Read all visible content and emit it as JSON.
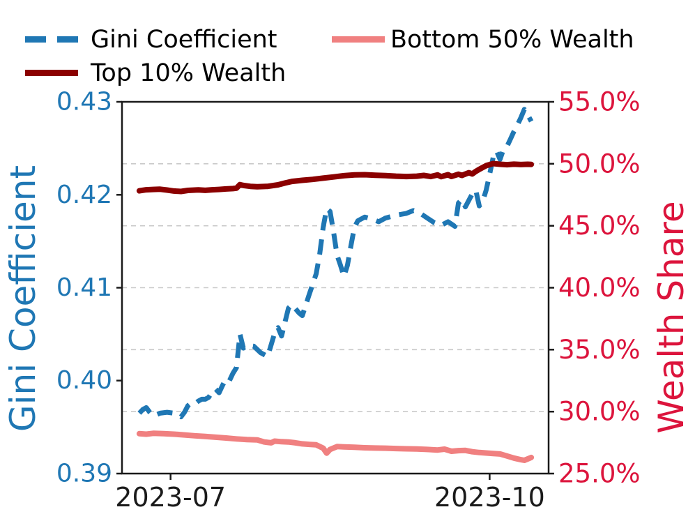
{
  "figure": {
    "background": "#ffffff",
    "legend": {
      "items": [
        {
          "label": "Gini Coefficient",
          "color": "#1f77b4",
          "style": "dashed"
        },
        {
          "label": "Top 10% Wealth",
          "color": "#8b0000",
          "style": "solid"
        },
        {
          "label": "Bottom 50% Wealth",
          "color": "#f08080",
          "style": "solid"
        }
      ]
    },
    "axes": {
      "left": {
        "label": "Gini Coefficient",
        "color": "#1f77b4",
        "lim": [
          0.39,
          0.43
        ],
        "ticks": [
          {
            "label": "0.43",
            "value": 0.43
          },
          {
            "label": "0.42",
            "value": 0.42
          },
          {
            "label": "0.41",
            "value": 0.41
          },
          {
            "label": "0.40",
            "value": 0.4
          },
          {
            "label": "0.39",
            "value": 0.39
          }
        ]
      },
      "right": {
        "label": "Wealth Share",
        "color": "#dc143c",
        "lim": [
          25.0,
          55.0
        ],
        "ticks": [
          {
            "label": "55.0%",
            "value": 55.0
          },
          {
            "label": "50.0%",
            "value": 50.0
          },
          {
            "label": "45.0%",
            "value": 45.0
          },
          {
            "label": "40.0%",
            "value": 40.0
          },
          {
            "label": "35.0%",
            "value": 35.0
          },
          {
            "label": "30.0%",
            "value": 30.0
          },
          {
            "label": "25.0%",
            "value": 25.0
          }
        ]
      },
      "x": {
        "lim": [
          "2023-06-17",
          "2023-10-18"
        ],
        "tick_color": "#1a1a1a",
        "ticks": [
          {
            "label": "2023-07",
            "value": "2023-07-01"
          },
          {
            "label": "2023-10",
            "value": "2023-10-01"
          }
        ]
      }
    },
    "spine_color": "#1a1a1a"
  },
  "chart_data": {
    "type": "line",
    "x_type": "date",
    "title": "",
    "grid": {
      "axis": "right",
      "values": [
        50,
        45,
        40,
        35,
        30
      ],
      "color": "#c9c9c9",
      "dash": [
        7,
        6
      ]
    },
    "legend_position": "top, 2 columns, frameless",
    "series": [
      {
        "name": "Gini Coefficient",
        "axis": "left",
        "color": "#1f77b4",
        "style": "dashed",
        "dash": [
          22,
          13
        ],
        "width": 7,
        "points": [
          [
            "2023-06-22",
            0.3965
          ],
          [
            "2023-06-23",
            0.3969
          ],
          [
            "2023-06-24",
            0.3971
          ],
          [
            "2023-06-25",
            0.3966
          ],
          [
            "2023-06-26",
            0.3962
          ],
          [
            "2023-06-28",
            0.3965
          ],
          [
            "2023-06-30",
            0.3966
          ],
          [
            "2023-07-02",
            0.3965
          ],
          [
            "2023-07-03",
            0.3963
          ],
          [
            "2023-07-04",
            0.3961
          ],
          [
            "2023-07-05",
            0.3966
          ],
          [
            "2023-07-06",
            0.3973
          ],
          [
            "2023-07-07",
            0.3976
          ],
          [
            "2023-07-08",
            0.3975
          ],
          [
            "2023-07-09",
            0.3978
          ],
          [
            "2023-07-10",
            0.398
          ],
          [
            "2023-07-11",
            0.398
          ],
          [
            "2023-07-12",
            0.3982
          ],
          [
            "2023-07-13",
            0.3988
          ],
          [
            "2023-07-14",
            0.3991
          ],
          [
            "2023-07-15",
            0.3987
          ],
          [
            "2023-07-16",
            0.3995
          ],
          [
            "2023-07-17",
            0.4002
          ],
          [
            "2023-07-18",
            0.4
          ],
          [
            "2023-07-19",
            0.4008
          ],
          [
            "2023-07-20",
            0.4014
          ],
          [
            "2023-07-21",
            0.405
          ],
          [
            "2023-07-22",
            0.4035
          ],
          [
            "2023-07-23",
            0.4038
          ],
          [
            "2023-07-25",
            0.4037
          ],
          [
            "2023-07-27",
            0.403
          ],
          [
            "2023-07-29",
            0.4026
          ],
          [
            "2023-07-31",
            0.4051
          ],
          [
            "2023-08-01",
            0.4057
          ],
          [
            "2023-08-02",
            0.4048
          ],
          [
            "2023-08-04",
            0.4078
          ],
          [
            "2023-08-05",
            0.4082
          ],
          [
            "2023-08-07",
            0.4073
          ],
          [
            "2023-08-08",
            0.407
          ],
          [
            "2023-08-10",
            0.4093
          ],
          [
            "2023-08-11",
            0.4104
          ],
          [
            "2023-08-12",
            0.4115
          ],
          [
            "2023-08-13",
            0.4136
          ],
          [
            "2023-08-14",
            0.4165
          ],
          [
            "2023-08-15",
            0.4185
          ],
          [
            "2023-08-16",
            0.4182
          ],
          [
            "2023-08-17",
            0.416
          ],
          [
            "2023-08-18",
            0.4135
          ],
          [
            "2023-08-19",
            0.4124
          ],
          [
            "2023-08-20",
            0.4112
          ],
          [
            "2023-08-21",
            0.4124
          ],
          [
            "2023-08-22",
            0.4145
          ],
          [
            "2023-08-23",
            0.4165
          ],
          [
            "2023-08-24",
            0.4172
          ],
          [
            "2023-08-26",
            0.4176
          ],
          [
            "2023-08-28",
            0.4174
          ],
          [
            "2023-08-30",
            0.4171
          ],
          [
            "2023-09-01",
            0.4175
          ],
          [
            "2023-09-04",
            0.4178
          ],
          [
            "2023-09-07",
            0.418
          ],
          [
            "2023-09-09",
            0.4183
          ],
          [
            "2023-09-11",
            0.418
          ],
          [
            "2023-09-13",
            0.4175
          ],
          [
            "2023-09-15",
            0.417
          ],
          [
            "2023-09-17",
            0.4167
          ],
          [
            "2023-09-19",
            0.4171
          ],
          [
            "2023-09-21",
            0.4166
          ],
          [
            "2023-09-22",
            0.4191
          ],
          [
            "2023-09-23",
            0.4195
          ],
          [
            "2023-09-24",
            0.4187
          ],
          [
            "2023-09-26",
            0.4201
          ],
          [
            "2023-09-27",
            0.4205
          ],
          [
            "2023-09-28",
            0.4188
          ],
          [
            "2023-09-29",
            0.4193
          ],
          [
            "2023-09-30",
            0.4205
          ],
          [
            "2023-10-01",
            0.4222
          ],
          [
            "2023-10-02",
            0.424
          ],
          [
            "2023-10-03",
            0.4247
          ],
          [
            "2023-10-04",
            0.4238
          ],
          [
            "2023-10-05",
            0.4249
          ],
          [
            "2023-10-06",
            0.4252
          ],
          [
            "2023-10-07",
            0.426
          ],
          [
            "2023-10-08",
            0.4268
          ],
          [
            "2023-10-09",
            0.4275
          ],
          [
            "2023-10-10",
            0.4283
          ],
          [
            "2023-10-11",
            0.4292
          ],
          [
            "2023-10-12",
            0.4286
          ],
          [
            "2023-10-13",
            0.4279
          ]
        ]
      },
      {
        "name": "Top 10% Wealth",
        "axis": "right",
        "color": "#8b0000",
        "style": "solid",
        "dash": null,
        "width": 8,
        "points": [
          [
            "2023-06-22",
            47.82
          ],
          [
            "2023-06-24",
            47.9
          ],
          [
            "2023-06-26",
            47.93
          ],
          [
            "2023-06-28",
            47.95
          ],
          [
            "2023-06-30",
            47.88
          ],
          [
            "2023-07-02",
            47.8
          ],
          [
            "2023-07-04",
            47.77
          ],
          [
            "2023-07-06",
            47.85
          ],
          [
            "2023-07-09",
            47.89
          ],
          [
            "2023-07-11",
            47.86
          ],
          [
            "2023-07-13",
            47.9
          ],
          [
            "2023-07-15",
            47.93
          ],
          [
            "2023-07-17",
            47.97
          ],
          [
            "2023-07-19",
            48.0
          ],
          [
            "2023-07-20",
            48.03
          ],
          [
            "2023-07-21",
            48.32
          ],
          [
            "2023-07-22",
            48.25
          ],
          [
            "2023-07-24",
            48.18
          ],
          [
            "2023-07-26",
            48.15
          ],
          [
            "2023-07-29",
            48.18
          ],
          [
            "2023-08-01",
            48.3
          ],
          [
            "2023-08-03",
            48.45
          ],
          [
            "2023-08-05",
            48.58
          ],
          [
            "2023-08-08",
            48.67
          ],
          [
            "2023-08-11",
            48.74
          ],
          [
            "2023-08-14",
            48.84
          ],
          [
            "2023-08-17",
            48.94
          ],
          [
            "2023-08-20",
            49.04
          ],
          [
            "2023-08-23",
            49.1
          ],
          [
            "2023-08-26",
            49.12
          ],
          [
            "2023-08-29",
            49.08
          ],
          [
            "2023-09-01",
            49.05
          ],
          [
            "2023-09-04",
            49.0
          ],
          [
            "2023-09-07",
            48.97
          ],
          [
            "2023-09-10",
            49.0
          ],
          [
            "2023-09-12",
            49.06
          ],
          [
            "2023-09-14",
            48.97
          ],
          [
            "2023-09-16",
            49.1
          ],
          [
            "2023-09-17",
            48.96
          ],
          [
            "2023-09-19",
            49.12
          ],
          [
            "2023-09-20",
            48.98
          ],
          [
            "2023-09-22",
            49.16
          ],
          [
            "2023-09-23",
            49.06
          ],
          [
            "2023-09-25",
            49.28
          ],
          [
            "2023-09-26",
            49.18
          ],
          [
            "2023-09-27",
            49.38
          ],
          [
            "2023-09-28",
            49.55
          ],
          [
            "2023-09-30",
            49.85
          ],
          [
            "2023-10-02",
            50.02
          ],
          [
            "2023-10-04",
            49.96
          ],
          [
            "2023-10-06",
            49.93
          ],
          [
            "2023-10-08",
            49.97
          ],
          [
            "2023-10-10",
            49.94
          ],
          [
            "2023-10-12",
            49.96
          ],
          [
            "2023-10-13",
            49.95
          ]
        ]
      },
      {
        "name": "Bottom 50% Wealth",
        "axis": "right",
        "color": "#f08080",
        "style": "solid",
        "dash": null,
        "width": 8,
        "points": [
          [
            "2023-06-22",
            28.22
          ],
          [
            "2023-06-24",
            28.18
          ],
          [
            "2023-06-26",
            28.25
          ],
          [
            "2023-06-29",
            28.22
          ],
          [
            "2023-07-02",
            28.18
          ],
          [
            "2023-07-05",
            28.12
          ],
          [
            "2023-07-08",
            28.05
          ],
          [
            "2023-07-11",
            28.0
          ],
          [
            "2023-07-14",
            27.93
          ],
          [
            "2023-07-17",
            27.87
          ],
          [
            "2023-07-20",
            27.8
          ],
          [
            "2023-07-23",
            27.74
          ],
          [
            "2023-07-26",
            27.72
          ],
          [
            "2023-07-28",
            27.55
          ],
          [
            "2023-07-30",
            27.48
          ],
          [
            "2023-07-31",
            27.62
          ],
          [
            "2023-08-02",
            27.57
          ],
          [
            "2023-08-04",
            27.55
          ],
          [
            "2023-08-06",
            27.48
          ],
          [
            "2023-08-08",
            27.4
          ],
          [
            "2023-08-10",
            27.35
          ],
          [
            "2023-08-12",
            27.32
          ],
          [
            "2023-08-14",
            27.05
          ],
          [
            "2023-08-15",
            26.65
          ],
          [
            "2023-08-16",
            26.95
          ],
          [
            "2023-08-18",
            27.18
          ],
          [
            "2023-08-20",
            27.15
          ],
          [
            "2023-08-23",
            27.12
          ],
          [
            "2023-08-26",
            27.08
          ],
          [
            "2023-08-29",
            27.06
          ],
          [
            "2023-09-01",
            27.05
          ],
          [
            "2023-09-04",
            27.02
          ],
          [
            "2023-09-07",
            27.0
          ],
          [
            "2023-09-10",
            26.98
          ],
          [
            "2023-09-13",
            26.95
          ],
          [
            "2023-09-16",
            26.9
          ],
          [
            "2023-09-18",
            26.97
          ],
          [
            "2023-09-20",
            26.8
          ],
          [
            "2023-09-22",
            26.85
          ],
          [
            "2023-09-24",
            26.87
          ],
          [
            "2023-09-26",
            26.76
          ],
          [
            "2023-09-28",
            26.7
          ],
          [
            "2023-09-30",
            26.66
          ],
          [
            "2023-10-02",
            26.62
          ],
          [
            "2023-10-04",
            26.58
          ],
          [
            "2023-10-06",
            26.42
          ],
          [
            "2023-10-08",
            26.25
          ],
          [
            "2023-10-10",
            26.12
          ],
          [
            "2023-10-11",
            26.07
          ],
          [
            "2023-10-12",
            26.18
          ],
          [
            "2023-10-13",
            26.3
          ]
        ]
      }
    ]
  }
}
